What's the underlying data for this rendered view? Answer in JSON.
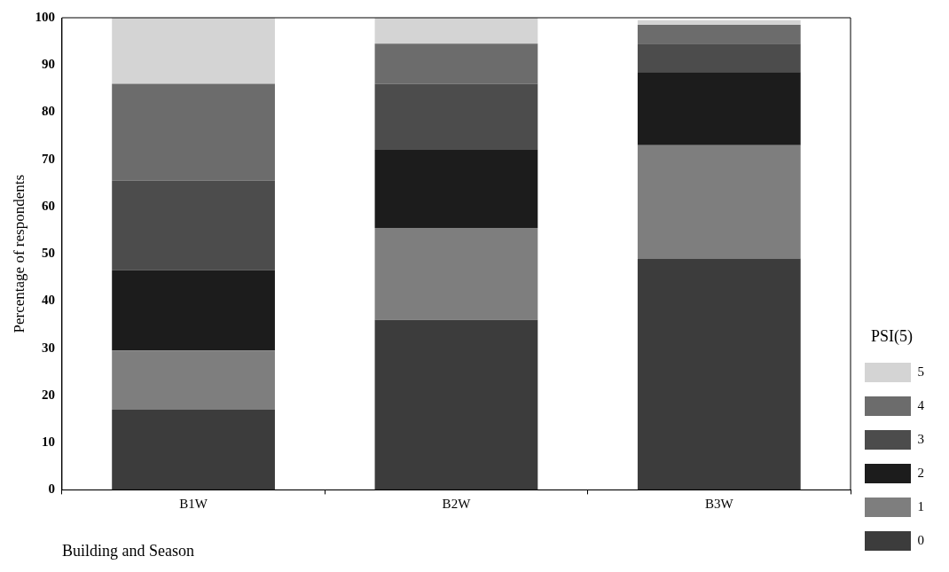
{
  "chart_data": {
    "type": "bar",
    "stacked": true,
    "xlabel": "Building and Season",
    "ylabel": "Percentage of respondents",
    "legend_title": "PSI(5)",
    "legend": "right",
    "categories": [
      "B1W",
      "B2W",
      "B3W"
    ],
    "ylim": [
      0,
      100
    ],
    "yticks": [
      0,
      10,
      20,
      30,
      40,
      50,
      60,
      70,
      80,
      90,
      100
    ],
    "grid": false,
    "series": [
      {
        "name": "0",
        "color": "#3c3c3c",
        "values": [
          17,
          36,
          49
        ]
      },
      {
        "name": "1",
        "color": "#7e7e7e",
        "values": [
          12.5,
          19.5,
          24
        ]
      },
      {
        "name": "2",
        "color": "#1c1c1c",
        "values": [
          17,
          16.5,
          15.5
        ]
      },
      {
        "name": "3",
        "color": "#4c4c4c",
        "values": [
          19,
          14,
          6
        ]
      },
      {
        "name": "4",
        "color": "#6c6c6c",
        "values": [
          20.5,
          8.5,
          4
        ]
      },
      {
        "name": "5",
        "color": "#d4d4d4",
        "values": [
          14,
          5.5,
          1
        ]
      }
    ]
  }
}
